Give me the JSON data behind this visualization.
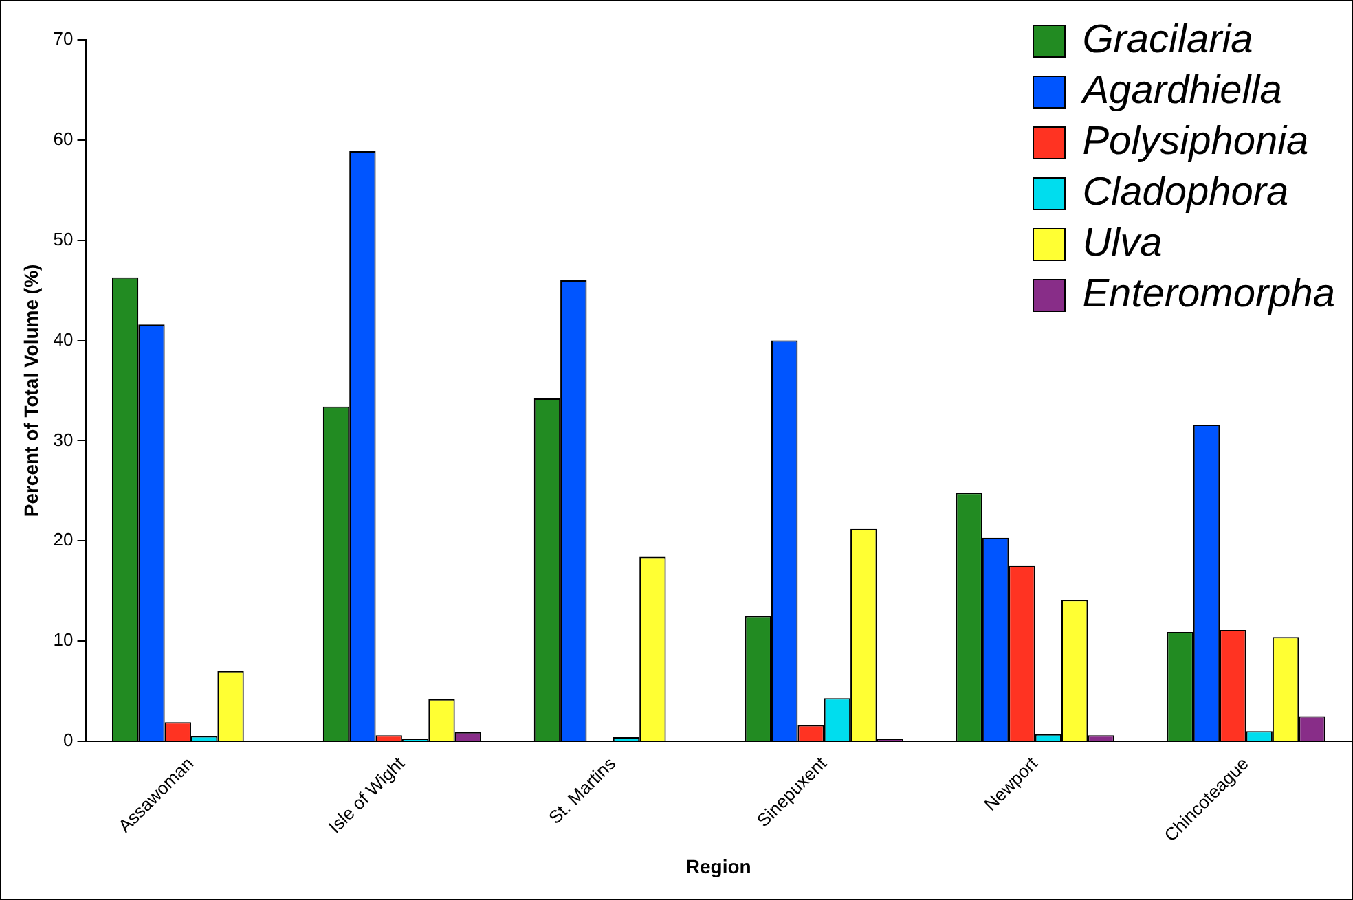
{
  "chart_data": {
    "type": "bar",
    "xlabel": "Region",
    "ylabel": "Percent of Total Volume (%)",
    "categories": [
      "Assawoman",
      "Isle of Wight",
      "St. Martins",
      "Sinepuxent",
      "Newport",
      "Chincoteague"
    ],
    "series": [
      {
        "name": "Gracilaria",
        "color": "#228b22",
        "values": [
          46.3,
          33.4,
          34.2,
          12.5,
          24.8,
          10.9
        ]
      },
      {
        "name": "Agardhiella",
        "color": "#0055ff",
        "values": [
          41.6,
          58.9,
          46.0,
          40.0,
          20.3,
          31.6
        ]
      },
      {
        "name": "Polysiphonia",
        "color": "#ff3322",
        "values": [
          1.9,
          0.6,
          0,
          1.6,
          17.5,
          11.1
        ]
      },
      {
        "name": "Cladophora",
        "color": "#00ddee",
        "values": [
          0.5,
          0.2,
          0.4,
          4.3,
          0.7,
          1.0
        ]
      },
      {
        "name": "Ulva",
        "color": "#ffff33",
        "values": [
          7.0,
          4.2,
          18.4,
          21.2,
          14.1,
          10.4
        ]
      },
      {
        "name": "Enteromorpha",
        "color": "#882d88",
        "values": [
          0,
          0.9,
          0,
          0.2,
          0.6,
          2.5
        ]
      }
    ],
    "ylim": [
      0,
      70
    ],
    "yticks": [
      0,
      10,
      20,
      30,
      40,
      50,
      60,
      70
    ],
    "grid": false,
    "legend": "top right"
  }
}
